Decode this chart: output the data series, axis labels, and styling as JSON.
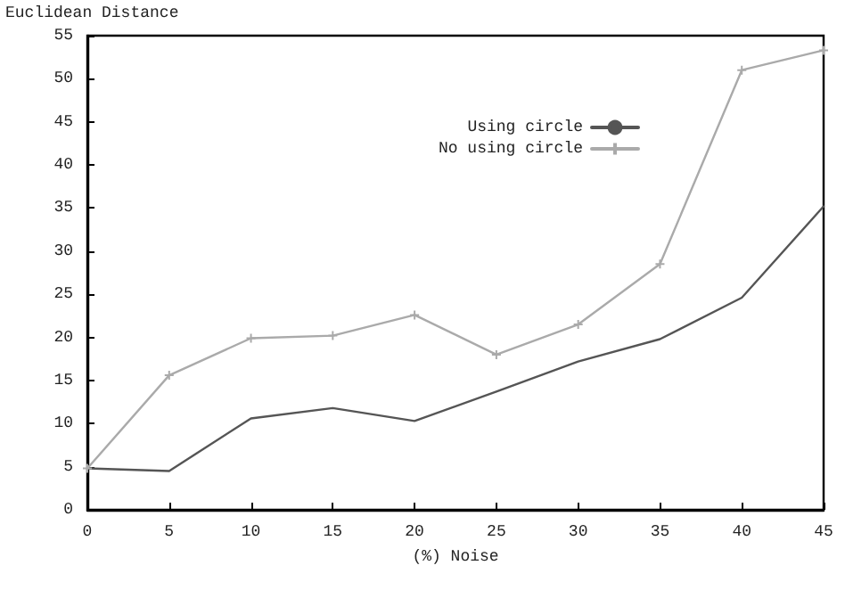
{
  "chart_data": {
    "type": "line",
    "xlabel": "(%) Noise",
    "ylabel": "Euclidean Distance",
    "x": [
      0,
      5,
      10,
      15,
      20,
      25,
      30,
      35,
      40,
      45
    ],
    "series": [
      {
        "name": "Using circle",
        "color": "#555555",
        "marker": "none",
        "values": [
          4.8,
          4.5,
          10.6,
          11.8,
          10.3,
          13.7,
          17.2,
          19.8,
          24.6,
          35.2
        ]
      },
      {
        "name": "No using circle",
        "color": "#aaaaaa",
        "marker": "cross",
        "values": [
          4.8,
          15.6,
          19.9,
          20.2,
          22.6,
          18.0,
          21.5,
          28.5,
          51.0,
          53.3
        ]
      }
    ],
    "xlim": [
      0,
      45
    ],
    "xticks": [
      0,
      5,
      10,
      15,
      20,
      25,
      30,
      35,
      40,
      45
    ],
    "ylim": [
      0,
      55
    ],
    "yticks": [
      0,
      5,
      10,
      15,
      20,
      25,
      30,
      35,
      40,
      45,
      50,
      55
    ],
    "grid": false,
    "legend": "top right",
    "line_style": "solid"
  }
}
